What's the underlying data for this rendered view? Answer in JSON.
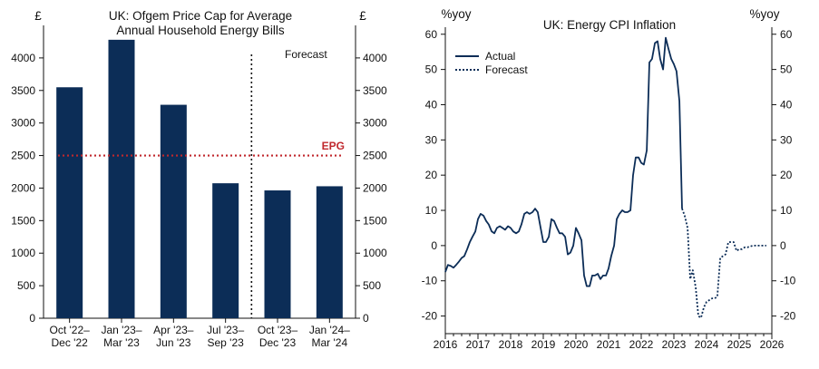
{
  "chart_data": [
    {
      "type": "bar",
      "title": "UK: Ofgem Price Cap for Average",
      "subtitle": "Annual Household Energy Bills",
      "left_unit": "£",
      "right_unit": "£",
      "categories": [
        [
          "Oct '22–",
          "Dec '22"
        ],
        [
          "Jan '23–",
          "Mar '23"
        ],
        [
          "Apr '23–",
          "Jun '23"
        ],
        [
          "Jul '23–",
          "Sep '23"
        ],
        [
          "Oct '23–",
          "Dec '23"
        ],
        [
          "Jan '24–",
          "Mar '24"
        ]
      ],
      "values": [
        3549,
        4279,
        3280,
        2074,
        1964,
        2028
      ],
      "ylim": [
        0,
        4500
      ],
      "yticks": [
        0,
        500,
        1000,
        1500,
        2000,
        2500,
        3000,
        3500,
        4000
      ],
      "bar_color": "#0c2d57",
      "reference_line": {
        "label": "EPG",
        "value": 2500,
        "color": "#c0282d"
      },
      "forecast_divider_after_index": 3,
      "forecast_label": "Forecast"
    },
    {
      "type": "line",
      "title": "UK: Energy CPI Inflation",
      "left_unit": "%yoy",
      "right_unit": "%yoy",
      "xlim": [
        2016,
        2026
      ],
      "ylim": [
        -25,
        62
      ],
      "xticks": [
        2016,
        2017,
        2018,
        2019,
        2020,
        2021,
        2022,
        2023,
        2024,
        2025,
        2026
      ],
      "yticks": [
        -20,
        -10,
        0,
        10,
        20,
        30,
        40,
        50,
        60
      ],
      "line_color": "#0c2d57",
      "series": [
        {
          "name": "Actual",
          "style": "solid",
          "points": [
            [
              2016.0,
              -7.5
            ],
            [
              2016.08,
              -5.5
            ],
            [
              2016.17,
              -5.8
            ],
            [
              2016.25,
              -6.3
            ],
            [
              2016.33,
              -5.5
            ],
            [
              2016.42,
              -4.5
            ],
            [
              2016.5,
              -3.5
            ],
            [
              2016.58,
              -3.0
            ],
            [
              2016.67,
              -1.0
            ],
            [
              2016.75,
              1.0
            ],
            [
              2016.83,
              2.5
            ],
            [
              2016.92,
              4.0
            ],
            [
              2017.0,
              7.5
            ],
            [
              2017.08,
              9.0
            ],
            [
              2017.17,
              8.5
            ],
            [
              2017.25,
              7.0
            ],
            [
              2017.33,
              6.0
            ],
            [
              2017.42,
              4.0
            ],
            [
              2017.5,
              3.5
            ],
            [
              2017.58,
              5.0
            ],
            [
              2017.67,
              5.5
            ],
            [
              2017.75,
              5.0
            ],
            [
              2017.83,
              4.5
            ],
            [
              2017.92,
              5.5
            ],
            [
              2018.0,
              5.0
            ],
            [
              2018.08,
              4.0
            ],
            [
              2018.17,
              3.5
            ],
            [
              2018.25,
              4.0
            ],
            [
              2018.33,
              6.0
            ],
            [
              2018.42,
              9.0
            ],
            [
              2018.5,
              9.5
            ],
            [
              2018.58,
              9.0
            ],
            [
              2018.67,
              9.5
            ],
            [
              2018.75,
              10.5
            ],
            [
              2018.83,
              9.5
            ],
            [
              2018.92,
              5.0
            ],
            [
              2019.0,
              1.0
            ],
            [
              2019.08,
              1.0
            ],
            [
              2019.17,
              2.5
            ],
            [
              2019.25,
              7.5
            ],
            [
              2019.33,
              7.0
            ],
            [
              2019.42,
              5.0
            ],
            [
              2019.5,
              3.5
            ],
            [
              2019.58,
              3.5
            ],
            [
              2019.67,
              2.5
            ],
            [
              2019.75,
              -2.5
            ],
            [
              2019.83,
              -2.0
            ],
            [
              2019.92,
              0.0
            ],
            [
              2020.0,
              5.0
            ],
            [
              2020.08,
              3.5
            ],
            [
              2020.17,
              1.5
            ],
            [
              2020.25,
              -8.5
            ],
            [
              2020.33,
              -11.5
            ],
            [
              2020.42,
              -11.5
            ],
            [
              2020.5,
              -8.5
            ],
            [
              2020.58,
              -8.5
            ],
            [
              2020.67,
              -8.0
            ],
            [
              2020.75,
              -9.5
            ],
            [
              2020.83,
              -8.5
            ],
            [
              2020.92,
              -8.5
            ],
            [
              2021.0,
              -6.5
            ],
            [
              2021.08,
              -3.0
            ],
            [
              2021.17,
              0.0
            ],
            [
              2021.25,
              7.5
            ],
            [
              2021.33,
              9.0
            ],
            [
              2021.42,
              10.0
            ],
            [
              2021.5,
              9.5
            ],
            [
              2021.58,
              9.5
            ],
            [
              2021.67,
              10.0
            ],
            [
              2021.75,
              20.0
            ],
            [
              2021.83,
              25.0
            ],
            [
              2021.92,
              25.0
            ],
            [
              2022.0,
              23.5
            ],
            [
              2022.08,
              23.0
            ],
            [
              2022.17,
              27.0
            ],
            [
              2022.25,
              52.0
            ],
            [
              2022.33,
              53.0
            ],
            [
              2022.42,
              57.5
            ],
            [
              2022.5,
              58.0
            ],
            [
              2022.58,
              53.0
            ],
            [
              2022.67,
              50.0
            ],
            [
              2022.75,
              59.0
            ],
            [
              2022.83,
              56.0
            ],
            [
              2022.92,
              53.0
            ],
            [
              2023.0,
              51.5
            ],
            [
              2023.08,
              49.5
            ],
            [
              2023.17,
              41.0
            ],
            [
              2023.25,
              10.5
            ]
          ]
        },
        {
          "name": "Forecast",
          "style": "dotted",
          "points": [
            [
              2023.25,
              10.5
            ],
            [
              2023.33,
              8.5
            ],
            [
              2023.42,
              5.0
            ],
            [
              2023.5,
              -9.5
            ],
            [
              2023.58,
              -7.0
            ],
            [
              2023.67,
              -12.0
            ],
            [
              2023.75,
              -20.0
            ],
            [
              2023.83,
              -20.5
            ],
            [
              2023.92,
              -17.5
            ],
            [
              2024.0,
              -16.0
            ],
            [
              2024.08,
              -15.5
            ],
            [
              2024.17,
              -15.0
            ],
            [
              2024.25,
              -15.0
            ],
            [
              2024.33,
              -14.5
            ],
            [
              2024.42,
              -3.5
            ],
            [
              2024.5,
              -3.0
            ],
            [
              2024.58,
              -2.5
            ],
            [
              2024.67,
              1.0
            ],
            [
              2024.75,
              1.0
            ],
            [
              2024.83,
              1.0
            ],
            [
              2024.92,
              -1.5
            ],
            [
              2025.0,
              -1.0
            ],
            [
              2025.08,
              -1.0
            ],
            [
              2025.17,
              -0.5
            ],
            [
              2025.25,
              -0.5
            ],
            [
              2025.42,
              0.0
            ],
            [
              2025.58,
              0.0
            ],
            [
              2025.75,
              0.0
            ],
            [
              2025.83,
              0.0
            ]
          ]
        }
      ]
    }
  ]
}
